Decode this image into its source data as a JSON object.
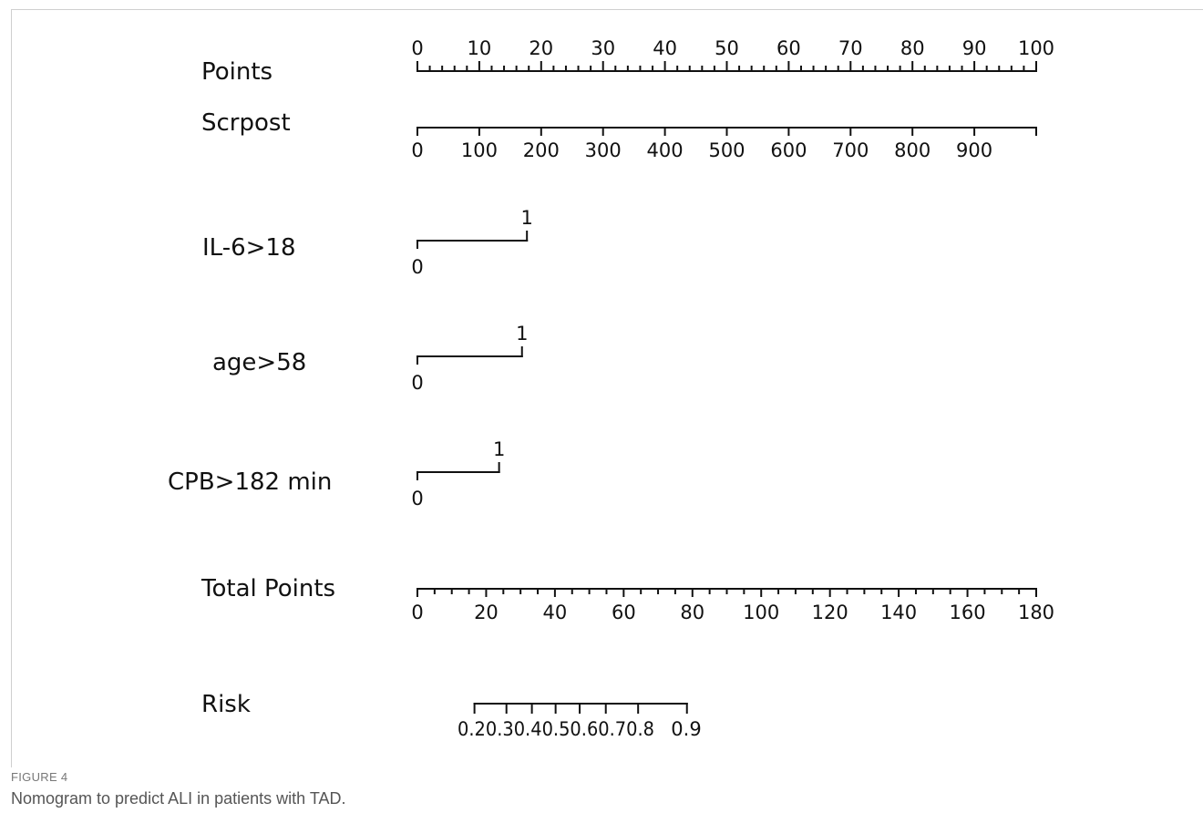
{
  "chart_data": {
    "type": "nomogram",
    "points_scale": {
      "label": "Points",
      "min": 0,
      "max": 100,
      "major_ticks": [
        0,
        10,
        20,
        30,
        40,
        50,
        60,
        70,
        80,
        90,
        100
      ],
      "minor_step": 2
    },
    "variables": [
      {
        "label": "Scrpost",
        "kind": "continuous",
        "points_range": [
          0,
          100
        ],
        "values": [
          0,
          100,
          200,
          300,
          400,
          500,
          600,
          700,
          800,
          900
        ],
        "tick_values": [
          0,
          100,
          200,
          300,
          400,
          500,
          600,
          700,
          800,
          900,
          1000
        ],
        "value_max": 1000
      },
      {
        "label": "IL-6>18",
        "kind": "binary",
        "levels": [
          {
            "value": "0",
            "points": 0
          },
          {
            "value": "1",
            "points": 17.7
          }
        ]
      },
      {
        "label": "age>58",
        "kind": "binary",
        "levels": [
          {
            "value": "0",
            "points": 0
          },
          {
            "value": "1",
            "points": 16.9
          }
        ]
      },
      {
        "label": "CPB>182 min",
        "kind": "binary",
        "levels": [
          {
            "value": "0",
            "points": 0
          },
          {
            "value": "1",
            "points": 13.2
          }
        ]
      }
    ],
    "total_points_scale": {
      "label": "Total Points",
      "min": 0,
      "max": 180,
      "major_ticks": [
        0,
        20,
        40,
        60,
        80,
        100,
        120,
        140,
        160,
        180
      ],
      "minor_step": 5
    },
    "risk_scale": {
      "label": "Risk",
      "ticks": [
        {
          "value": "0.2",
          "total_points": 16.6
        },
        {
          "value": "0.3",
          "total_points": 25.9
        },
        {
          "value": "0.4",
          "total_points": 33.3
        },
        {
          "value": "0.5",
          "total_points": 40.2
        },
        {
          "value": "0.6",
          "total_points": 47.2
        },
        {
          "value": "0.7",
          "total_points": 54.8
        },
        {
          "value": "0.8",
          "total_points": 64.2
        },
        {
          "value": "0.9",
          "total_points": 78.4
        }
      ],
      "tick_label_text": "0.20.30.40.50.60.70.8",
      "last_tick_label": "0.9"
    }
  },
  "caption": {
    "figure_label": "FIGURE 4",
    "text": "Nomogram to predict ALI in patients with TAD."
  }
}
